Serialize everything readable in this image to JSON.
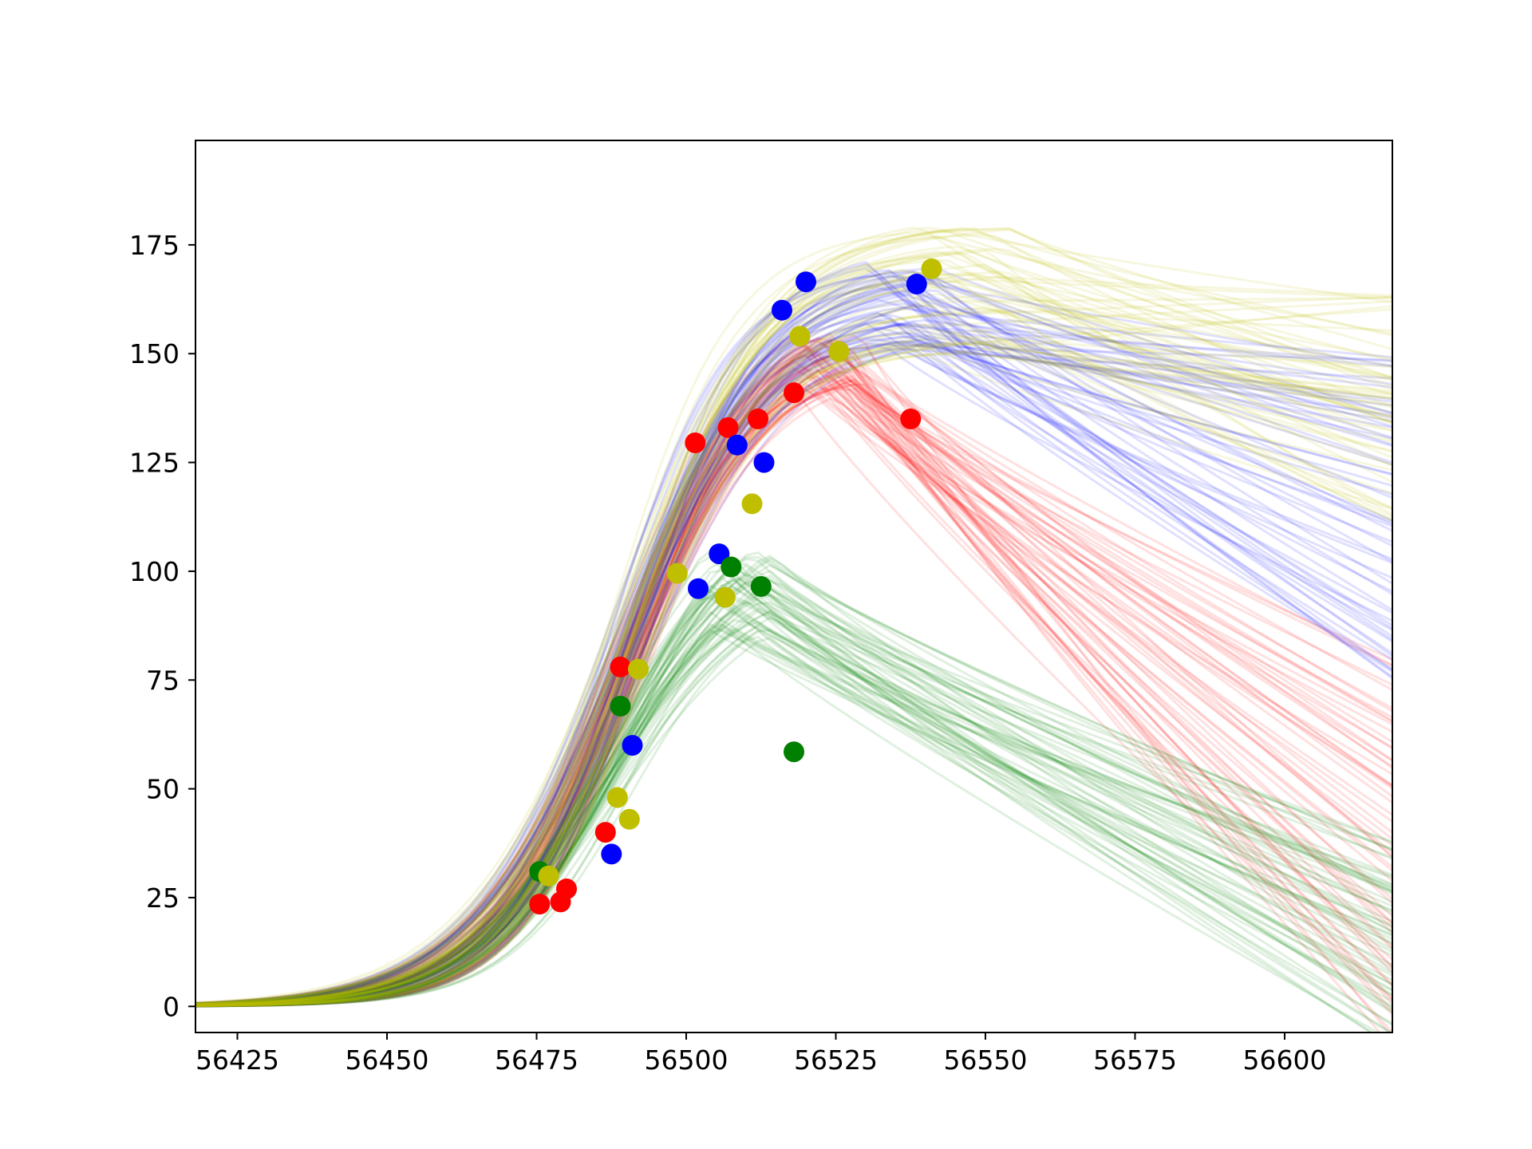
{
  "chart_data": {
    "type": "scatter",
    "title": "",
    "xlabel": "",
    "ylabel": "",
    "xlim": [
      56418,
      56618
    ],
    "ylim": [
      -6,
      199
    ],
    "xticks": [
      56425,
      56450,
      56475,
      56500,
      56525,
      56550,
      56575,
      56600
    ],
    "xtick_labels": [
      "56425",
      "56450",
      "56475",
      "56500",
      "56525",
      "56550",
      "56575",
      "56600"
    ],
    "yticks": [
      0,
      25,
      50,
      75,
      100,
      125,
      150,
      175
    ],
    "ytick_labels": [
      "0",
      "25",
      "50",
      "75",
      "100",
      "125",
      "150",
      "175"
    ],
    "grid": false,
    "legend": "none",
    "series": [
      {
        "color": "#ff0000",
        "points": [
          {
            "x": 56475.5,
            "y": 23.5
          },
          {
            "x": 56479,
            "y": 24
          },
          {
            "x": 56480,
            "y": 27
          },
          {
            "x": 56486.5,
            "y": 40
          },
          {
            "x": 56489,
            "y": 78
          },
          {
            "x": 56501.5,
            "y": 129.5
          },
          {
            "x": 56507,
            "y": 133
          },
          {
            "x": 56512,
            "y": 135
          },
          {
            "x": 56518,
            "y": 141
          },
          {
            "x": 56537.5,
            "y": 135
          }
        ],
        "model_curves": {
          "count": 60,
          "peak_x_range": [
            56517,
            56530
          ],
          "peak_y_range": [
            140,
            155
          ],
          "end_y_range": [
            -10,
            85
          ]
        }
      },
      {
        "color": "#0000ff",
        "points": [
          {
            "x": 56487.5,
            "y": 35
          },
          {
            "x": 56491,
            "y": 60
          },
          {
            "x": 56502,
            "y": 96
          },
          {
            "x": 56505.5,
            "y": 104
          },
          {
            "x": 56508.5,
            "y": 129
          },
          {
            "x": 56513,
            "y": 125
          },
          {
            "x": 56516,
            "y": 160
          },
          {
            "x": 56520,
            "y": 166.5
          },
          {
            "x": 56538.5,
            "y": 166
          }
        ],
        "model_curves": {
          "count": 60,
          "peak_x_range": [
            56530,
            56542
          ],
          "peak_y_range": [
            150,
            172
          ],
          "end_y_range": [
            75,
            150
          ]
        }
      },
      {
        "color": "#008000",
        "points": [
          {
            "x": 56475.5,
            "y": 31
          },
          {
            "x": 56489,
            "y": 69
          },
          {
            "x": 56507.5,
            "y": 101
          },
          {
            "x": 56512.5,
            "y": 96.5
          },
          {
            "x": 56518,
            "y": 58.5
          }
        ],
        "model_curves": {
          "count": 60,
          "peak_x_range": [
            56503,
            56515
          ],
          "peak_y_range": [
            85,
            106
          ],
          "end_y_range": [
            -10,
            40
          ]
        }
      },
      {
        "color": "#bfbf00",
        "points": [
          {
            "x": 56477,
            "y": 30
          },
          {
            "x": 56488.5,
            "y": 48
          },
          {
            "x": 56490.5,
            "y": 43
          },
          {
            "x": 56492,
            "y": 77.5
          },
          {
            "x": 56498.5,
            "y": 99.5
          },
          {
            "x": 56506.5,
            "y": 94
          },
          {
            "x": 56511,
            "y": 115.5
          },
          {
            "x": 56519,
            "y": 154
          },
          {
            "x": 56525.5,
            "y": 150.5
          },
          {
            "x": 56541,
            "y": 169.5
          }
        ],
        "model_curves": {
          "count": 60,
          "peak_x_range": [
            56535,
            56555
          ],
          "peak_y_range": [
            150,
            180
          ],
          "end_y_range": [
            110,
            165
          ]
        }
      }
    ]
  }
}
